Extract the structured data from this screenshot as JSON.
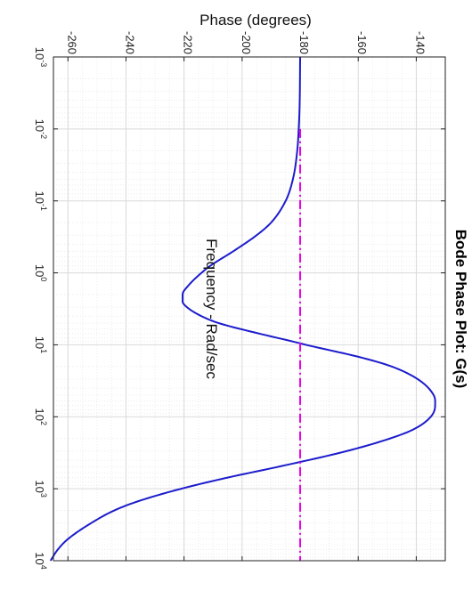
{
  "chart_data": {
    "type": "line",
    "orientation": "rotated 90 degrees clockwise (frequency runs top to bottom, phase runs left to right)",
    "title": "Bode Phase Plot: G(s)",
    "xlabel": "Frequency - Rad/sec",
    "ylabel": "Phase (degrees)",
    "x_scale": "log",
    "xlim": [
      0.001,
      10000
    ],
    "ylim": [
      -265,
      -130
    ],
    "x_ticks": [
      {
        "base": "10",
        "exp": "-3"
      },
      {
        "base": "10",
        "exp": "-2"
      },
      {
        "base": "10",
        "exp": "-1"
      },
      {
        "base": "10",
        "exp": "0"
      },
      {
        "base": "10",
        "exp": "1"
      },
      {
        "base": "10",
        "exp": "2"
      },
      {
        "base": "10",
        "exp": "3"
      },
      {
        "base": "10",
        "exp": "4"
      }
    ],
    "y_ticks": [
      "-260",
      "-240",
      "-220",
      "-200",
      "-180",
      "-160",
      "-140"
    ],
    "grid": true,
    "minor_grid": true,
    "series": [
      {
        "color": "#1c1ccc",
        "style": "solid",
        "x": [
          0.001,
          0.005,
          0.01,
          0.02,
          0.05,
          0.1,
          0.2,
          0.3,
          0.5,
          0.8,
          1,
          1.5,
          2,
          2.5,
          3,
          4,
          5,
          7,
          9,
          10,
          15,
          20,
          30,
          50,
          70,
          100,
          150,
          200,
          300,
          500,
          700,
          1000,
          1500,
          2000,
          3000,
          5000,
          7000,
          10000
        ],
        "y": [
          -180,
          -180.2,
          -180.5,
          -181,
          -182.5,
          -185,
          -190,
          -195,
          -203,
          -211,
          -214,
          -218.5,
          -220.5,
          -220.5,
          -219,
          -214,
          -208,
          -194,
          -182.5,
          -178,
          -159,
          -148.5,
          -139.5,
          -134,
          -133.5,
          -135,
          -141,
          -149,
          -164,
          -188,
          -205,
          -221,
          -236,
          -244,
          -252,
          -260,
          -263.5,
          -266
        ]
      },
      {
        "color": "#e600e6",
        "style": "dash-dot",
        "x": [
          0.01,
          10000
        ],
        "y": [
          -180,
          -180
        ]
      }
    ]
  }
}
